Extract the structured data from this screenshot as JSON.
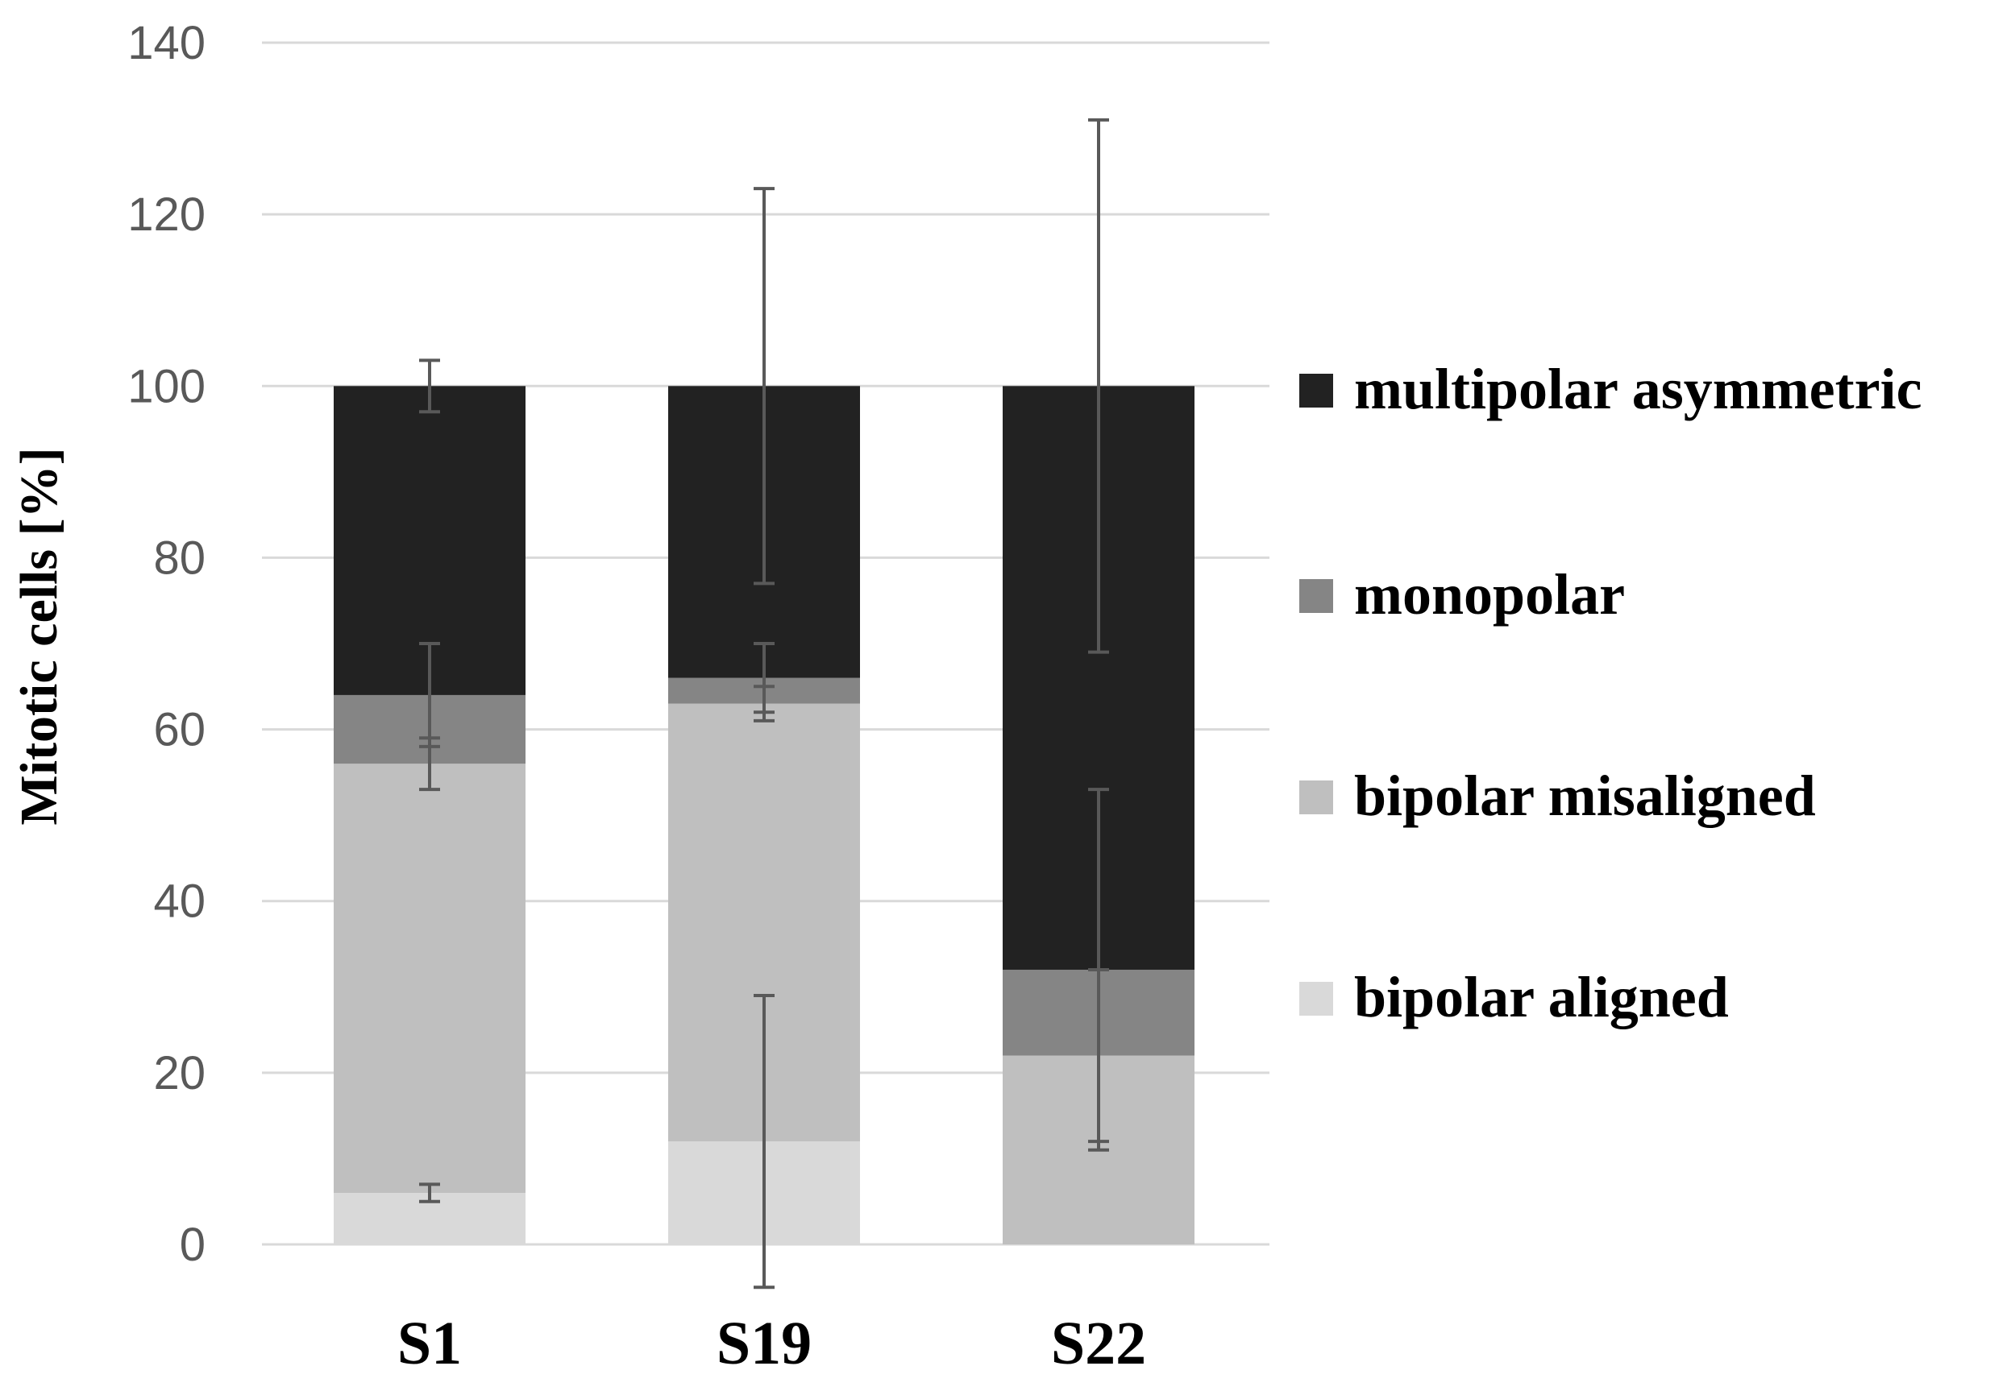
{
  "chart_data": {
    "type": "bar",
    "stacked": true,
    "categories": [
      "S1",
      "S19",
      "S22"
    ],
    "ylabel": "Mitotic cells [%]",
    "xlabel": "",
    "ylim": [
      0,
      140
    ],
    "yticks": [
      0,
      20,
      40,
      60,
      80,
      100,
      120,
      140
    ],
    "grid": true,
    "legend_position": "right",
    "series": [
      {
        "name": "bipolar aligned",
        "color": "#d9d9d9",
        "values": [
          6,
          12,
          0
        ],
        "error": [
          1,
          17,
          0
        ]
      },
      {
        "name": "bipolar misaligned",
        "color": "#bfbfbf",
        "values": [
          50,
          51,
          22
        ],
        "error": [
          3,
          2,
          10
        ]
      },
      {
        "name": "monopolar",
        "color": "#858585",
        "values": [
          8,
          3,
          10
        ],
        "error": [
          6,
          4,
          21
        ]
      },
      {
        "name": "multipolar asymmetric",
        "color": "#222222",
        "values": [
          36,
          34,
          68
        ],
        "error": [
          3,
          23,
          31
        ]
      }
    ],
    "legend_order": [
      "multipolar asymmetric",
      "monopolar",
      "bipolar misaligned",
      "bipolar aligned"
    ]
  }
}
